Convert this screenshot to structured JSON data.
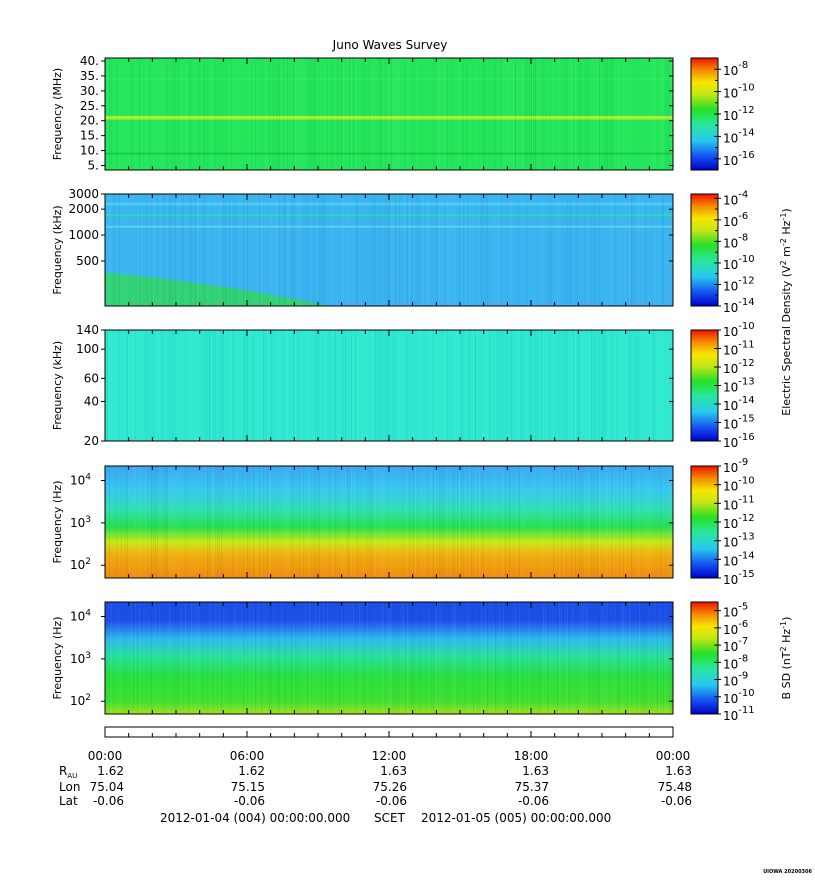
{
  "chart_data": [
    {
      "type": "heatmap",
      "title": "Juno Waves Survey",
      "ylabel": "Frequency (MHz)",
      "ylim": [
        3.5,
        41
      ],
      "yscale": "linear",
      "yticks": [
        {
          "value": 40,
          "label": "40."
        },
        {
          "value": 35,
          "label": "35."
        },
        {
          "value": 30,
          "label": "30."
        },
        {
          "value": 25,
          "label": "25."
        },
        {
          "value": 20,
          "label": "20."
        },
        {
          "value": 15,
          "label": "15."
        },
        {
          "value": 10,
          "label": "10."
        },
        {
          "value": 5,
          "label": "5."
        }
      ],
      "colorbar": {
        "min_exp": -17,
        "max_exp": -7,
        "labels": [
          {
            "exp": -8,
            "text": "-8"
          },
          {
            "exp": -10,
            "text": "-10"
          },
          {
            "exp": -12,
            "text": "-12"
          },
          {
            "exp": -14,
            "text": "-14"
          },
          {
            "exp": -16,
            "text": "-16"
          }
        ]
      },
      "background_color": "#23e65a",
      "features": [
        {
          "kind": "band",
          "y": 21,
          "width": 1.2,
          "color": "#c0f026"
        },
        {
          "kind": "band",
          "y": 9,
          "width": 0.6,
          "color": "#15c83a"
        },
        {
          "kind": "band",
          "y": 34,
          "width": 0.4,
          "color": "#2fe86a"
        }
      ]
    },
    {
      "type": "heatmap",
      "ylabel": "Frequency (kHz)",
      "ylim": [
        150,
        3000
      ],
      "yscale": "log",
      "yticks": [
        {
          "value": 3000,
          "label": "3000"
        },
        {
          "value": 2000,
          "label": "2000"
        },
        {
          "value": 1000,
          "label": "1000"
        },
        {
          "value": 500,
          "label": "500"
        }
      ],
      "colorbar": {
        "min_exp": -14,
        "max_exp": -3.6,
        "labels": [
          {
            "exp": -4,
            "text": "-4"
          },
          {
            "exp": -6,
            "text": "-6"
          },
          {
            "exp": -8,
            "text": "-8"
          },
          {
            "exp": -10,
            "text": "-10"
          },
          {
            "exp": -12,
            "text": "-12"
          },
          {
            "exp": -14,
            "text": "-14"
          }
        ]
      },
      "background_color": "#3ab4f0",
      "features": [
        {
          "kind": "band",
          "y": 1700,
          "width": 120,
          "color": "#28dcb4"
        },
        {
          "kind": "band",
          "y": 2300,
          "width": 180,
          "color": "#4ad0f0"
        },
        {
          "kind": "band",
          "y": 1250,
          "width": 80,
          "color": "#5ad0f0"
        },
        {
          "kind": "curve",
          "from": [
            0,
            330
          ],
          "to": [
            9.5,
            160
          ],
          "color": "#30d858"
        }
      ]
    },
    {
      "type": "heatmap",
      "ylabel": "Frequency (kHz)",
      "ylim": [
        20,
        140
      ],
      "yscale": "log",
      "yticks": [
        {
          "value": 140,
          "label": "140"
        },
        {
          "value": 100,
          "label": "100"
        },
        {
          "value": 60,
          "label": "60"
        },
        {
          "value": 40,
          "label": "40"
        },
        {
          "value": 20,
          "label": "20"
        }
      ],
      "colorbar": {
        "min_exp": -16,
        "max_exp": -10,
        "labels": [
          {
            "exp": -10,
            "text": "-10"
          },
          {
            "exp": -11,
            "text": "-11"
          },
          {
            "exp": -12,
            "text": "-12"
          },
          {
            "exp": -13,
            "text": "-13"
          },
          {
            "exp": -14,
            "text": "-14"
          },
          {
            "exp": -15,
            "text": "-15"
          },
          {
            "exp": -16,
            "text": "-16"
          }
        ]
      },
      "background_color": "#2ee8d0",
      "features": []
    },
    {
      "type": "heatmap",
      "ylabel": "Frequency (Hz)",
      "ylim": [
        50,
        22000
      ],
      "yscale": "log",
      "yticks": [
        {
          "value": 10000,
          "label": "10",
          "exp": "4"
        },
        {
          "value": 1000,
          "label": "10",
          "exp": "3"
        },
        {
          "value": 100,
          "label": "10",
          "exp": "2"
        }
      ],
      "colorbar": {
        "min_exp": -15,
        "max_exp": -9,
        "labels": [
          {
            "exp": -9,
            "text": "-9"
          },
          {
            "exp": -10,
            "text": "-10"
          },
          {
            "exp": -11,
            "text": "-11"
          },
          {
            "exp": -12,
            "text": "-12"
          },
          {
            "exp": -13,
            "text": "-13"
          },
          {
            "exp": -14,
            "text": "-14"
          },
          {
            "exp": -15,
            "text": "-15"
          }
        ]
      },
      "gradient": [
        {
          "freq": 22000,
          "color": "#3aa8f0"
        },
        {
          "freq": 6000,
          "color": "#38c8f0"
        },
        {
          "freq": 2000,
          "color": "#30e0b0"
        },
        {
          "freq": 800,
          "color": "#28e050"
        },
        {
          "freq": 350,
          "color": "#c8e818"
        },
        {
          "freq": 180,
          "color": "#f0b010"
        },
        {
          "freq": 50,
          "color": "#f08a10"
        }
      ],
      "features": []
    },
    {
      "type": "heatmap",
      "ylabel": "Frequency (Hz)",
      "ylim": [
        50,
        22000
      ],
      "yscale": "log",
      "yticks": [
        {
          "value": 10000,
          "label": "10",
          "exp": "4"
        },
        {
          "value": 1000,
          "label": "10",
          "exp": "3"
        },
        {
          "value": 100,
          "label": "10",
          "exp": "2"
        }
      ],
      "colorbar": {
        "min_exp": -11,
        "max_exp": -4.5,
        "labels": [
          {
            "exp": -5,
            "text": "-5"
          },
          {
            "exp": -6,
            "text": "-6"
          },
          {
            "exp": -7,
            "text": "-7"
          },
          {
            "exp": -8,
            "text": "-8"
          },
          {
            "exp": -9,
            "text": "-9"
          },
          {
            "exp": -10,
            "text": "-10"
          },
          {
            "exp": -11,
            "text": "-11"
          }
        ]
      },
      "gradient": [
        {
          "freq": 22000,
          "color": "#1a4ee8"
        },
        {
          "freq": 8000,
          "color": "#1e50e8"
        },
        {
          "freq": 3000,
          "color": "#30b8f0"
        },
        {
          "freq": 1200,
          "color": "#28e0a0"
        },
        {
          "freq": 400,
          "color": "#28e040"
        },
        {
          "freq": 100,
          "color": "#40e030"
        },
        {
          "freq": 50,
          "color": "#a0e020"
        }
      ],
      "features": []
    }
  ],
  "colorbar_titles": {
    "electric": "Electric Spectral Density (V^2 m^-2 Hz^-1)",
    "magnetic": "B SD (nT^2 Hz^-1)"
  },
  "time_axis": {
    "labels": [
      "00:00",
      "06:00",
      "12:00",
      "18:00",
      "00:00"
    ],
    "hours": [
      0,
      6,
      12,
      18,
      24
    ]
  },
  "ephemeris": {
    "rows": [
      {
        "label": "R",
        "sub": "AU",
        "values": [
          "1.62",
          "1.62",
          "1.63",
          "1.63",
          "1.63"
        ]
      },
      {
        "label": "Lon",
        "sub": "",
        "values": [
          "75.04",
          "75.15",
          "75.26",
          "75.37",
          "75.48"
        ]
      },
      {
        "label": "Lat",
        "sub": "",
        "values": [
          "-0.06",
          "-0.06",
          "-0.06",
          "-0.06",
          "-0.06"
        ]
      }
    ]
  },
  "footer": {
    "start": "2012-01-04 (004) 00:00:00.000",
    "scet": "SCET",
    "end": "2012-01-05 (005) 00:00:00.000"
  },
  "stamp": "UIOWA 20200306"
}
